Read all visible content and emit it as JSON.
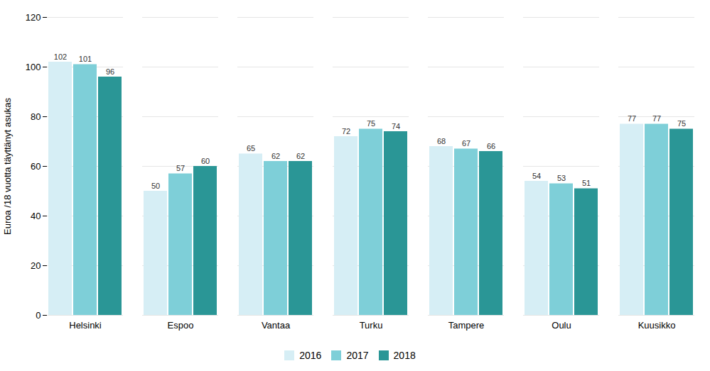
{
  "chart_data": {
    "type": "bar",
    "categories": [
      "Helsinki",
      "Espoo",
      "Vantaa",
      "Turku",
      "Tampere",
      "Oulu",
      "Kuusikko"
    ],
    "series": [
      {
        "name": "2016",
        "color": "#d6eef5",
        "values": [
          102,
          50,
          65,
          72,
          68,
          54,
          77
        ]
      },
      {
        "name": "2017",
        "color": "#7ecfd8",
        "values": [
          101,
          57,
          62,
          75,
          67,
          53,
          77
        ]
      },
      {
        "name": "2018",
        "color": "#2a9696",
        "values": [
          96,
          60,
          62,
          74,
          66,
          51,
          75
        ]
      }
    ],
    "ylabel": "Euroa /18 vuotta täyttänyt asukas",
    "ylim": [
      0,
      120
    ],
    "yticks": [
      0,
      20,
      40,
      60,
      80,
      100,
      120
    ],
    "grid": true,
    "legend": "bottom",
    "data_labels": true
  }
}
